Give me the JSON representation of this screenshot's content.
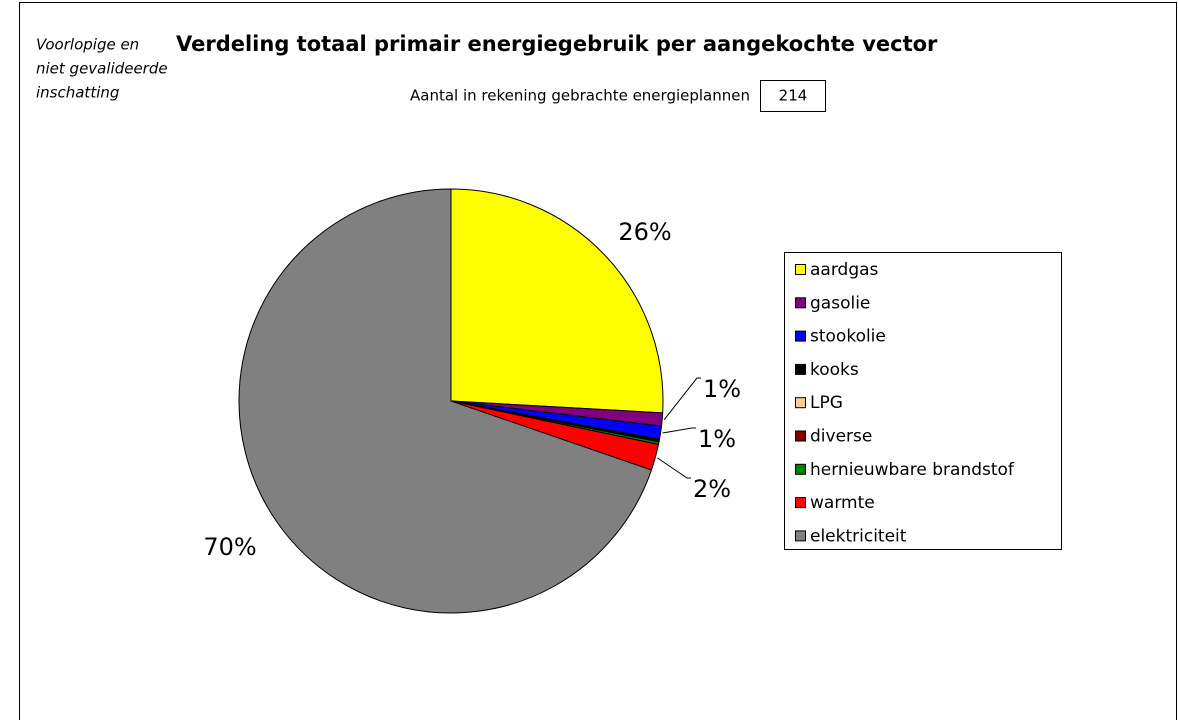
{
  "chart_data": {
    "type": "pie",
    "title": "Verdeling totaal primair energiegebruik per aangekochte vector",
    "note": [
      "Voorlopige en",
      "niet gevalideerde",
      "inschatting"
    ],
    "counter_label": "Aantal in rekening gebrachte energieplannen",
    "counter_value": 214,
    "categories": [
      "aardgas",
      "gasolie",
      "stookolie",
      "kooks",
      "LPG",
      "diverse",
      "hernieuwbare brandstof",
      "warmte",
      "elektriciteit"
    ],
    "values": [
      26,
      1,
      1,
      0.1,
      0.05,
      0.05,
      0.2,
      2,
      70
    ],
    "value_labels": [
      "26%",
      "1%",
      "1%",
      null,
      null,
      null,
      null,
      "2%",
      "70%"
    ],
    "colors": [
      "#ffff00",
      "#800080",
      "#0000ff",
      "#000000",
      "#ffcc99",
      "#800000",
      "#008000",
      "#ff0000",
      "#808080"
    ],
    "legend": "right"
  }
}
